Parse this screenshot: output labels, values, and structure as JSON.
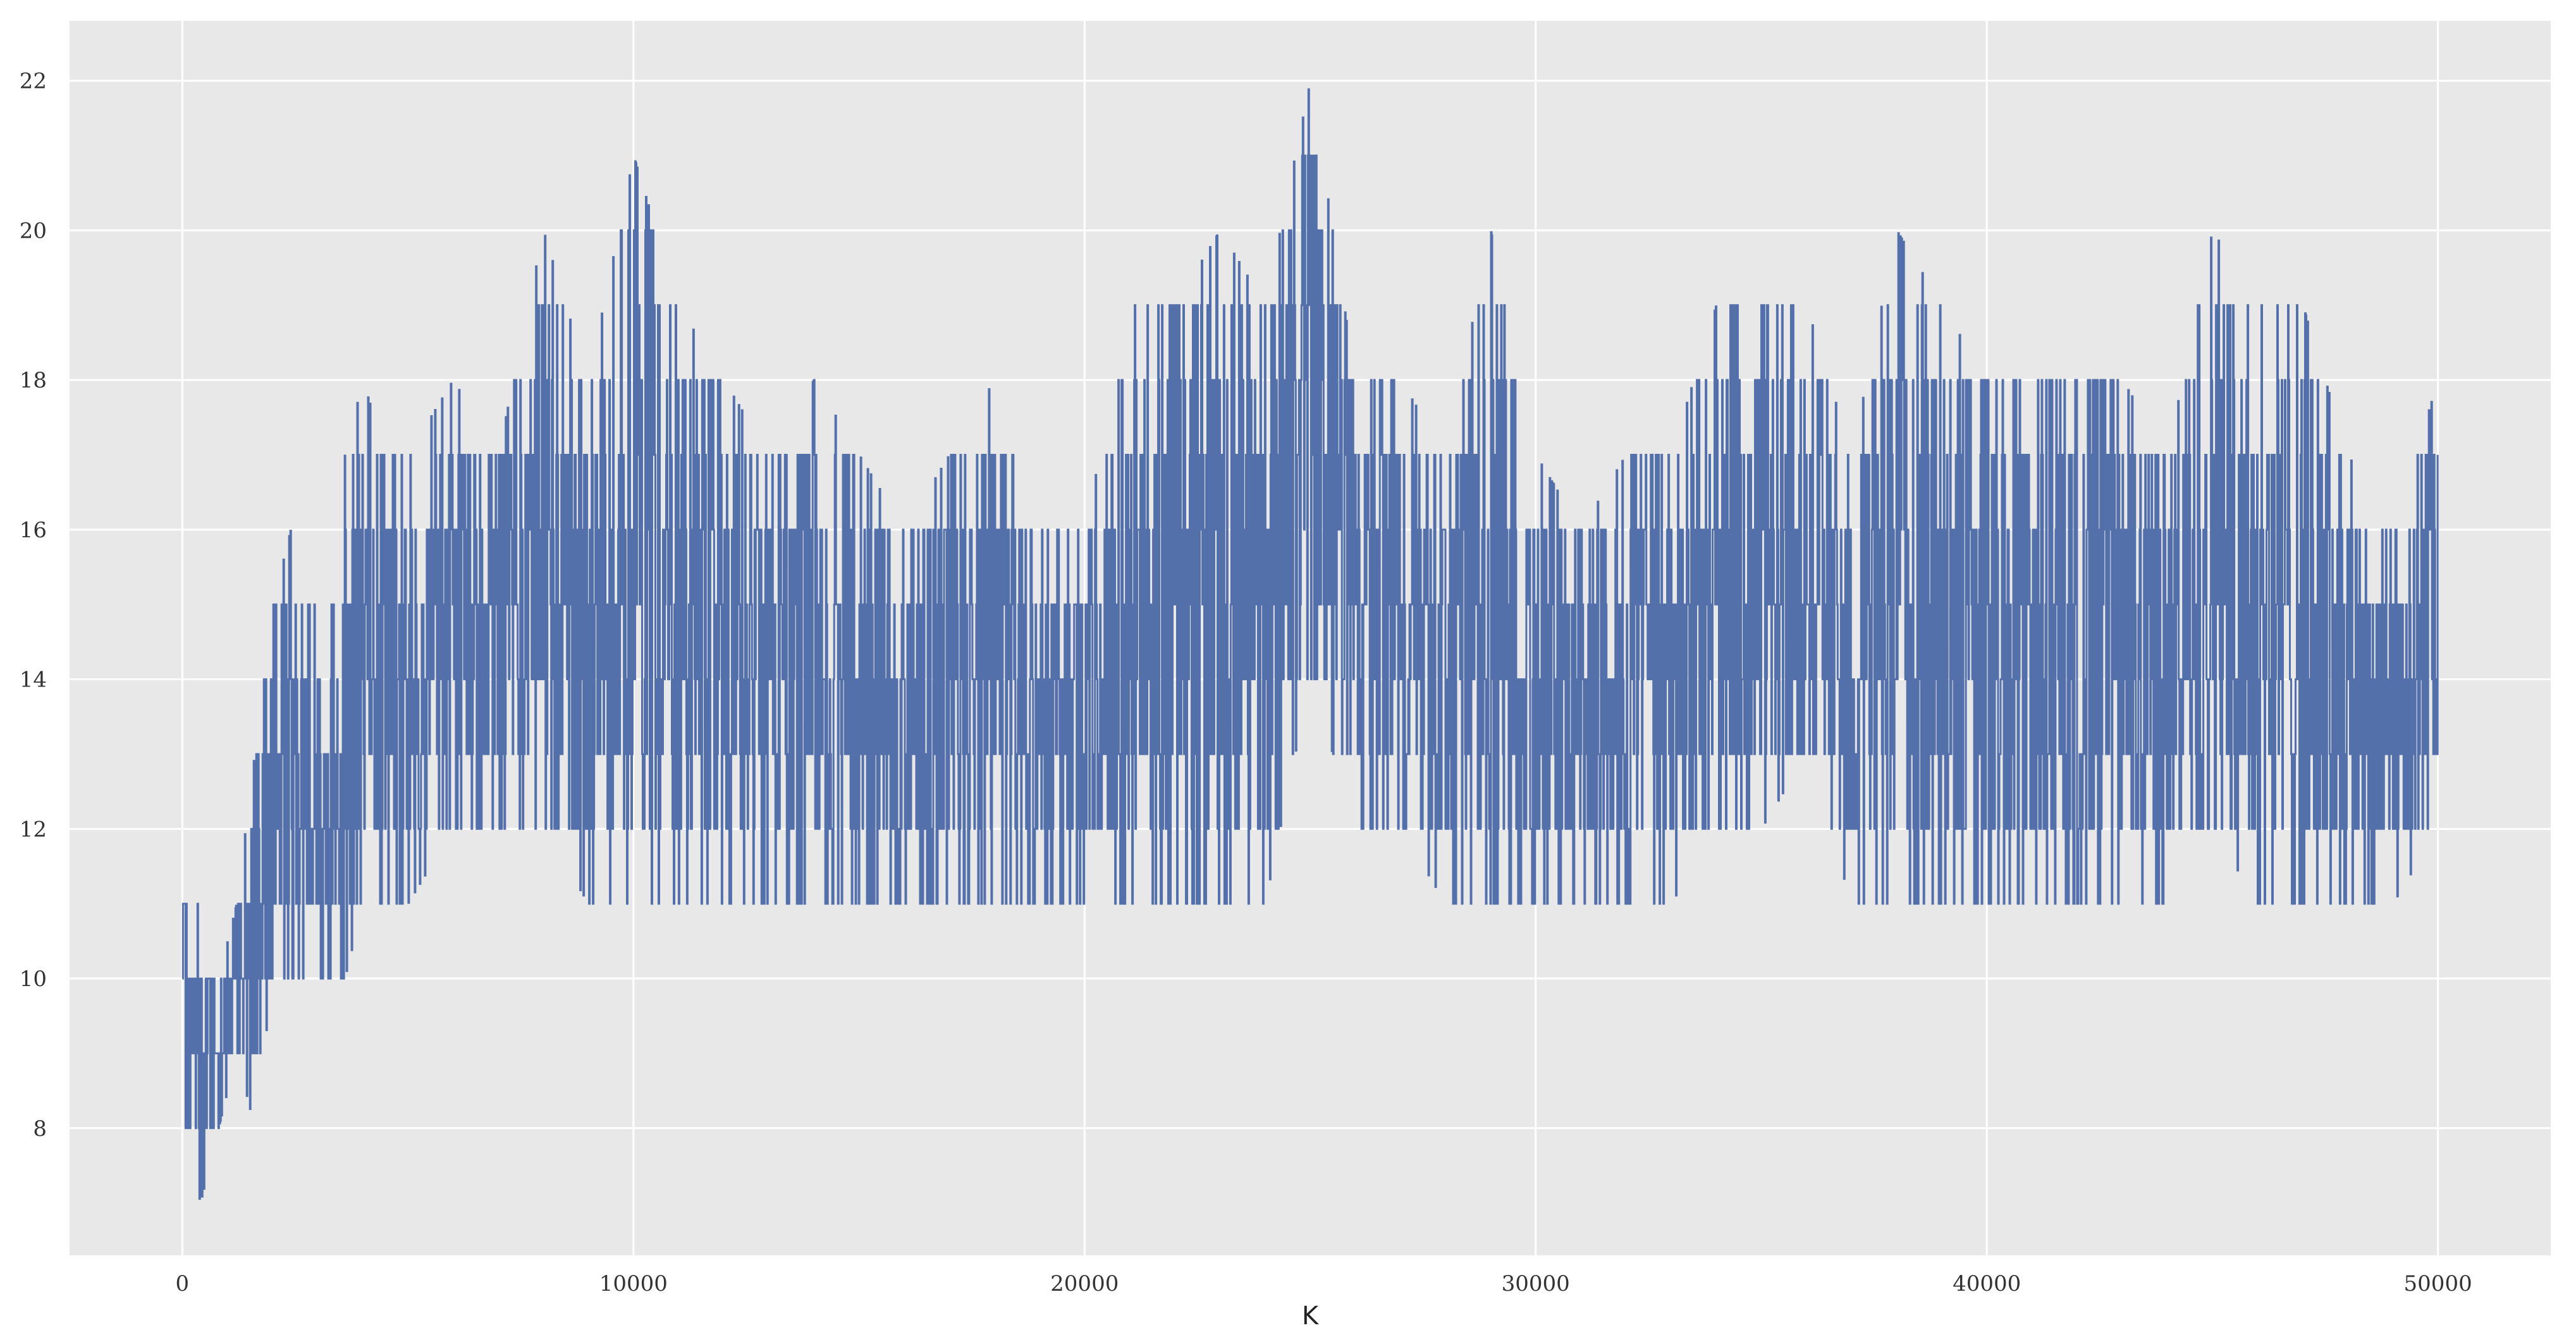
{
  "chart_data": {
    "type": "line",
    "title": "",
    "xlabel": "K",
    "ylabel": "",
    "xlim": [
      -2500,
      52500
    ],
    "ylim": [
      6.3,
      22.8
    ],
    "xticks": [
      0,
      10000,
      20000,
      30000,
      40000,
      50000
    ],
    "xtick_labels": [
      "0",
      "10000",
      "20000",
      "30000",
      "40000",
      "50000"
    ],
    "yticks": [
      8,
      10,
      12,
      14,
      16,
      18,
      20,
      22
    ],
    "ytick_labels": [
      "8",
      "10",
      "12",
      "14",
      "16",
      "18",
      "20",
      "22"
    ],
    "grid": true,
    "legend": false,
    "line_color": "#5470ab",
    "background_color": "#e8e8e8",
    "grid_color": "#ffffff",
    "series": [
      {
        "x": [
          0,
          400,
          800,
          1200,
          1600,
          2000,
          2400,
          2800,
          3200,
          3600,
          4000,
          4500,
          5000,
          6000,
          7000,
          8000,
          9000,
          10000,
          11000,
          12000,
          13000,
          14000,
          15000,
          16000,
          17000,
          18000,
          19000,
          20000,
          21000,
          22000,
          23000,
          24000,
          25000,
          26000,
          27000,
          28000,
          29000,
          30000,
          31000,
          32000,
          33000,
          34000,
          35000,
          36000,
          37000,
          38000,
          39000,
          40000,
          41000,
          42000,
          43000,
          44000,
          45000,
          46000,
          47000,
          48000,
          49000,
          50000
        ],
        "lower": [
          8,
          7,
          8,
          9,
          8,
          10,
          10,
          10,
          10,
          10,
          11,
          11,
          11,
          12,
          12,
          12,
          11,
          11,
          11,
          11,
          11,
          11,
          11,
          11,
          11,
          11,
          11,
          11,
          11,
          11,
          11,
          11,
          14,
          12,
          12,
          11,
          11,
          11,
          11,
          11,
          11,
          12,
          12,
          13,
          11,
          11,
          11,
          11,
          11,
          11,
          11,
          11,
          12,
          11,
          11,
          11,
          11,
          12
        ],
        "upper": [
          11,
          11,
          10,
          11,
          13,
          15,
          16,
          15,
          15,
          17,
          18,
          17,
          17,
          18,
          17,
          20,
          18,
          21,
          19,
          18,
          17,
          18,
          17,
          16,
          17,
          18,
          16,
          16,
          19,
          19,
          20,
          19,
          22,
          18,
          18,
          17,
          20,
          17,
          16,
          17,
          17,
          19,
          19,
          19,
          17,
          20,
          19,
          18,
          18,
          18,
          18,
          17,
          20,
          19,
          19,
          17,
          16,
          18
        ]
      }
    ]
  }
}
